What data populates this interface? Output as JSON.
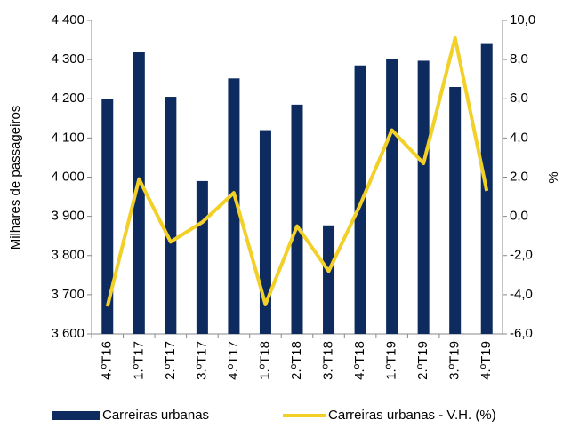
{
  "chart_data": {
    "type": "bar_line",
    "categories": [
      "4.ºT16",
      "1.ºT17",
      "2.ºT17",
      "3.ºT17",
      "4.ºT17",
      "1.ºT18",
      "2.ºT18",
      "3.ºT18",
      "4.ºT18",
      "1.ºT19",
      "2.ºT19",
      "3.ºT19",
      "4.ºT19"
    ],
    "series": [
      {
        "name": "Carreiras urbanas",
        "color": "#0d2b5e",
        "kind": "bar",
        "values": [
          4200,
          4320,
          4205,
          3990,
          4252,
          4120,
          4185,
          3877,
          4285,
          4302,
          4297,
          4230,
          4342
        ]
      },
      {
        "name": "Carreiras urbanas - V.H. (%)",
        "color": "#f2d027",
        "kind": "line",
        "axis": "y2",
        "values": [
          -4.6,
          1.9,
          -1.3,
          -0.3,
          1.2,
          -4.5,
          -0.5,
          -2.8,
          0.6,
          4.4,
          2.7,
          9.1,
          1.3
        ]
      }
    ],
    "ylabel": "Milhares de passageiros",
    "y2label": "%",
    "ylim": [
      3600,
      4400
    ],
    "yticks": [
      {
        "value": 3600,
        "label": "3 600"
      },
      {
        "value": 3700,
        "label": "3 700"
      },
      {
        "value": 3800,
        "label": "3 800"
      },
      {
        "value": 3900,
        "label": "3 900"
      },
      {
        "value": 4000,
        "label": "4 000"
      },
      {
        "value": 4100,
        "label": "4 100"
      },
      {
        "value": 4200,
        "label": "4 200"
      },
      {
        "value": 4300,
        "label": "4 300"
      },
      {
        "value": 4400,
        "label": "4 400"
      }
    ],
    "y2lim": [
      -6,
      10
    ],
    "y2ticks": [
      {
        "value": -6,
        "label": "-6,0"
      },
      {
        "value": -4,
        "label": "-4,0"
      },
      {
        "value": -2,
        "label": "-2,0"
      },
      {
        "value": 0,
        "label": "0,0"
      },
      {
        "value": 2,
        "label": "2,0"
      },
      {
        "value": 4,
        "label": "4,0"
      },
      {
        "value": 6,
        "label": "6,0"
      },
      {
        "value": 8,
        "label": "8,0"
      },
      {
        "value": 10,
        "label": "10,0"
      }
    ],
    "grid": false,
    "legend": "bottom"
  }
}
